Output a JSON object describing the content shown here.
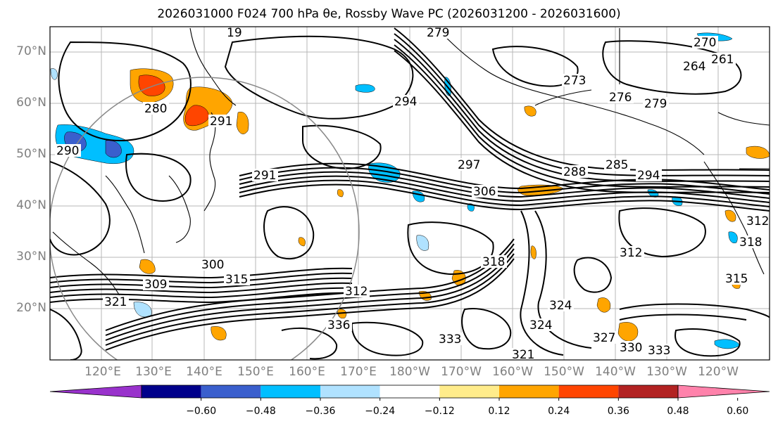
{
  "title": "2026031000 F024 700 hPa θe, Rossby Wave PC (2026031200 - 2026031600)",
  "lat_labels": [
    "70°N",
    "60°N",
    "50°N",
    "40°N",
    "30°N",
    "20°N"
  ],
  "lon_labels": [
    "120°E",
    "130°E",
    "140°E",
    "150°E",
    "160°E",
    "170°E",
    "180°W",
    "170°W",
    "160°W",
    "150°W",
    "140°W",
    "130°W",
    "120°W"
  ],
  "contour_labels": [
    "279",
    "270",
    "264",
    "273",
    "276",
    "279",
    "261",
    "294",
    "291",
    "285",
    "294",
    "288",
    "297",
    "306",
    "291",
    "300",
    "309",
    "315",
    "312",
    "318",
    "315",
    "321",
    "324",
    "327",
    "330",
    "333",
    "336",
    "333",
    "321",
    "312",
    "318",
    "312",
    "280",
    "290",
    "19",
    "324"
  ],
  "colorbar": {
    "ticks": [
      "−0.60",
      "−0.48",
      "−0.36",
      "−0.24",
      "−0.12",
      "0.12",
      "0.24",
      "0.36",
      "0.48",
      "0.60"
    ],
    "colors": [
      "#9932cc",
      "#00008b",
      "#3a5fcd",
      "#00bfff",
      "#b0e2ff",
      "#ffffff",
      "#ffec8b",
      "#ffa500",
      "#ff4500",
      "#b22222",
      "#ff82ab"
    ]
  },
  "shading_colors": {
    "pos_light": "#ffec8b",
    "pos_mid": "#ffa500",
    "pos_strong": "#ff4500",
    "neg_light": "#b0e2ff",
    "neg_mid": "#00bfff",
    "neg_strong": "#3a5fcd"
  }
}
